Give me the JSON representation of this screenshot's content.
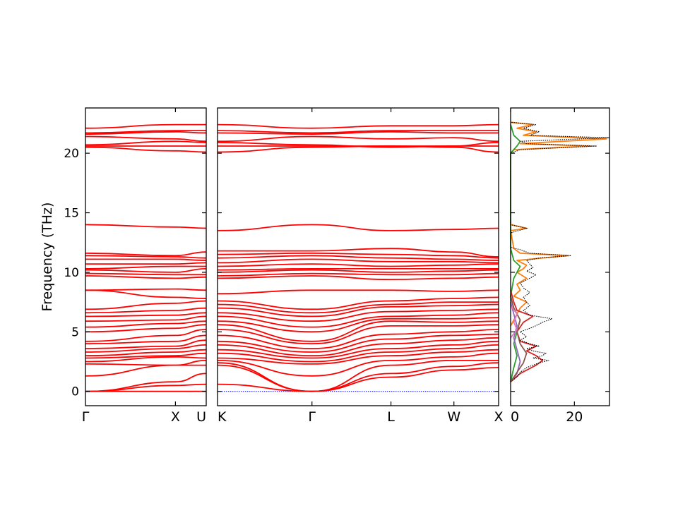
{
  "chart_data": {
    "type": "line",
    "ylabel": "Frequency (THz)",
    "ylim": [
      -1.2,
      23.8
    ],
    "yticks": [
      0,
      5,
      10,
      15,
      20
    ],
    "colors": {
      "bands": "#ff0000",
      "zero_line": "#0000ff",
      "axes": "#000000"
    },
    "band_panels": [
      {
        "segments": [
          {
            "start": "Γ",
            "end": "X"
          },
          {
            "start": "X",
            "end": "U"
          }
        ],
        "tick_labels": [
          "Γ",
          "X",
          "U"
        ],
        "tick_positions": [
          0,
          0.745,
          1.0
        ]
      },
      {
        "segments": [
          {
            "start": "K",
            "end": "Γ"
          },
          {
            "start": "Γ",
            "end": "L"
          },
          {
            "start": "L",
            "end": "W"
          },
          {
            "start": "W",
            "end": "X"
          }
        ],
        "tick_labels": [
          "K",
          "Γ",
          "L",
          "W",
          "X"
        ],
        "tick_positions": [
          0,
          0.336,
          0.617,
          0.841,
          1.0
        ]
      }
    ],
    "bands_panel1": [
      [
        0,
        0,
        0
      ],
      [
        0,
        0.5,
        0.6
      ],
      [
        0,
        0.8,
        1.5
      ],
      [
        1.3,
        2.2,
        2.2
      ],
      [
        2.3,
        2.2,
        2.6
      ],
      [
        2.5,
        2.9,
        2.8
      ],
      [
        2.8,
        3.0,
        3.2
      ],
      [
        3.0,
        3.3,
        3.5
      ],
      [
        3.3,
        3.6,
        3.9
      ],
      [
        3.6,
        3.8,
        4.3
      ],
      [
        4.0,
        4.2,
        4.7
      ],
      [
        4.2,
        4.7,
        5.2
      ],
      [
        5.0,
        5.3,
        5.6
      ],
      [
        5.4,
        5.7,
        5.9
      ],
      [
        5.9,
        6.0,
        6.3
      ],
      [
        6.3,
        6.4,
        6.6
      ],
      [
        6.6,
        6.8,
        7.0
      ],
      [
        6.9,
        7.4,
        7.6
      ],
      [
        8.5,
        7.9,
        7.8
      ],
      [
        8.5,
        8.6,
        8.5
      ],
      [
        9.7,
        9.5,
        9.6
      ],
      [
        9.9,
        9.8,
        9.8
      ],
      [
        10.2,
        10.0,
        10.3
      ],
      [
        10.3,
        10.5,
        10.5
      ],
      [
        10.7,
        10.7,
        10.8
      ],
      [
        11.1,
        11.1,
        11.0
      ],
      [
        11.4,
        11.3,
        11.2
      ],
      [
        11.6,
        11.4,
        11.7
      ],
      [
        14.0,
        13.8,
        13.7
      ],
      [
        20.5,
        20.2,
        20.1
      ],
      [
        20.6,
        20.6,
        20.6
      ],
      [
        20.7,
        21.0,
        20.9
      ],
      [
        21.4,
        21.2,
        21.0
      ],
      [
        21.6,
        21.8,
        21.7
      ],
      [
        21.7,
        21.9,
        21.9
      ],
      [
        22.1,
        22.4,
        22.4
      ]
    ],
    "bands_panel2": [
      [
        0.6,
        0,
        1.2,
        1.8,
        2.0
      ],
      [
        2.2,
        0,
        1.5,
        2.1,
        2.4
      ],
      [
        2.4,
        0,
        2.2,
        2.6,
        2.6
      ],
      [
        2.6,
        1.3,
        2.6,
        2.9,
        3.2
      ],
      [
        2.8,
        2.3,
        3.0,
        3.3,
        3.5
      ],
      [
        3.2,
        2.5,
        3.3,
        3.6,
        3.9
      ],
      [
        3.5,
        2.8,
        3.6,
        3.9,
        4.2
      ],
      [
        3.9,
        3.0,
        4.0,
        4.3,
        4.5
      ],
      [
        4.2,
        3.3,
        4.4,
        4.7,
        4.8
      ],
      [
        4.7,
        3.6,
        4.8,
        5.0,
        5.2
      ],
      [
        5.2,
        4.0,
        5.5,
        5.5,
        5.6
      ],
      [
        5.6,
        4.2,
        5.9,
        5.8,
        5.9
      ],
      [
        5.9,
        5.0,
        6.1,
        6.1,
        6.2
      ],
      [
        6.3,
        5.4,
        6.3,
        6.4,
        6.6
      ],
      [
        6.6,
        5.9,
        6.7,
        6.8,
        6.9
      ],
      [
        7.0,
        6.3,
        7.1,
        7.2,
        7.3
      ],
      [
        7.3,
        6.6,
        7.3,
        7.5,
        7.5
      ],
      [
        7.6,
        6.9,
        7.6,
        7.8,
        7.9
      ],
      [
        8.2,
        8.5,
        8.5,
        8.4,
        8.5
      ],
      [
        9.5,
        9.7,
        9.4,
        9.5,
        9.6
      ],
      [
        9.7,
        9.9,
        9.8,
        9.8,
        9.9
      ],
      [
        10.0,
        10.2,
        10.0,
        10.1,
        10.2
      ],
      [
        10.2,
        10.3,
        10.3,
        10.3,
        10.3
      ],
      [
        10.5,
        10.7,
        10.5,
        10.6,
        10.7
      ],
      [
        10.8,
        11.1,
        10.9,
        10.9,
        10.8
      ],
      [
        11.2,
        11.4,
        11.2,
        11.1,
        11.0
      ],
      [
        11.5,
        11.6,
        11.5,
        11.4,
        11.2
      ],
      [
        11.8,
        11.8,
        12.0,
        11.7,
        11.3
      ],
      [
        13.5,
        14.0,
        13.5,
        13.6,
        13.7
      ],
      [
        20.1,
        20.5,
        20.6,
        20.5,
        20.1
      ],
      [
        20.6,
        20.6,
        20.6,
        20.6,
        20.6
      ],
      [
        20.9,
        20.7,
        20.5,
        20.6,
        20.9
      ],
      [
        21.0,
        21.4,
        21.2,
        21.3,
        21.0
      ],
      [
        21.7,
        21.6,
        21.8,
        21.7,
        21.7
      ],
      [
        21.9,
        21.7,
        21.9,
        21.9,
        21.9
      ],
      [
        22.4,
        22.1,
        22.3,
        22.3,
        22.4
      ]
    ],
    "dos": {
      "xlim": [
        0,
        31
      ],
      "xticks": [
        0,
        20
      ],
      "grid": false,
      "total": [
        [
          0.8,
          0
        ],
        [
          1.2,
          2
        ],
        [
          1.6,
          3
        ],
        [
          2.0,
          5
        ],
        [
          2.4,
          9
        ],
        [
          2.6,
          12
        ],
        [
          2.8,
          7
        ],
        [
          3.0,
          10
        ],
        [
          3.2,
          11
        ],
        [
          3.4,
          7
        ],
        [
          3.6,
          5
        ],
        [
          3.8,
          9
        ],
        [
          4.0,
          6
        ],
        [
          4.3,
          3
        ],
        [
          4.6,
          5
        ],
        [
          5.0,
          3
        ],
        [
          5.4,
          7
        ],
        [
          5.8,
          10
        ],
        [
          6.1,
          13
        ],
        [
          6.4,
          6
        ],
        [
          6.8,
          4
        ],
        [
          7.2,
          6
        ],
        [
          7.5,
          5
        ],
        [
          7.9,
          4
        ],
        [
          8.3,
          6
        ],
        [
          8.7,
          4
        ],
        [
          9.1,
          3
        ],
        [
          9.5,
          6
        ],
        [
          9.8,
          8
        ],
        [
          10.1,
          5
        ],
        [
          10.4,
          7
        ],
        [
          10.7,
          6
        ],
        [
          11.0,
          5
        ],
        [
          11.2,
          9
        ],
        [
          11.4,
          19
        ],
        [
          11.6,
          6
        ],
        [
          11.9,
          3
        ],
        [
          12.1,
          0
        ],
        [
          13.3,
          0
        ],
        [
          13.7,
          5
        ],
        [
          14.0,
          0
        ],
        [
          20.0,
          0
        ],
        [
          20.3,
          3
        ],
        [
          20.6,
          27
        ],
        [
          20.8,
          5
        ],
        [
          21.0,
          3
        ],
        [
          21.3,
          31
        ],
        [
          21.5,
          6
        ],
        [
          21.8,
          9
        ],
        [
          22.1,
          4
        ],
        [
          22.4,
          8
        ],
        [
          22.6,
          0
        ]
      ],
      "partials": [
        {
          "color": "#ff7f0e",
          "points": [
            [
              5.5,
              0
            ],
            [
              6.0,
              1
            ],
            [
              6.5,
              2
            ],
            [
              7.0,
              3
            ],
            [
              7.5,
              5
            ],
            [
              8.0,
              1
            ],
            [
              8.5,
              3
            ],
            [
              9.0,
              2
            ],
            [
              9.5,
              5
            ],
            [
              10.0,
              2
            ],
            [
              10.3,
              4
            ],
            [
              10.6,
              5
            ],
            [
              11.0,
              2
            ],
            [
              11.4,
              18
            ],
            [
              11.6,
              3
            ],
            [
              12.0,
              1
            ],
            [
              13.5,
              0
            ],
            [
              13.7,
              5
            ],
            [
              14.0,
              0
            ],
            [
              20.0,
              0
            ],
            [
              20.3,
              1
            ],
            [
              20.6,
              25
            ],
            [
              20.8,
              3
            ],
            [
              21.2,
              30
            ],
            [
              21.5,
              4
            ],
            [
              21.8,
              8
            ],
            [
              22.1,
              2
            ],
            [
              22.4,
              7
            ],
            [
              22.6,
              0
            ]
          ]
        },
        {
          "color": "#2ca02c",
          "points": [
            [
              0.8,
              0
            ],
            [
              2.0,
              1
            ],
            [
              3.0,
              2
            ],
            [
              4.0,
              1
            ],
            [
              5.0,
              2
            ],
            [
              6.0,
              3
            ],
            [
              7.0,
              1
            ],
            [
              8.0,
              0
            ],
            [
              9.5,
              1
            ],
            [
              10.5,
              3
            ],
            [
              11.0,
              1
            ],
            [
              12.0,
              0
            ],
            [
              20.0,
              0
            ],
            [
              20.6,
              2
            ],
            [
              21.0,
              3
            ],
            [
              21.5,
              1
            ],
            [
              22.4,
              0
            ]
          ]
        },
        {
          "color": "#d62728",
          "points": [
            [
              0.8,
              0
            ],
            [
              1.5,
              3
            ],
            [
              2.2,
              8
            ],
            [
              2.6,
              10
            ],
            [
              3.0,
              8
            ],
            [
              3.4,
              5
            ],
            [
              3.8,
              8
            ],
            [
              4.2,
              3
            ],
            [
              5.0,
              2
            ],
            [
              5.8,
              4
            ],
            [
              6.3,
              7
            ],
            [
              6.8,
              2
            ],
            [
              7.5,
              1
            ],
            [
              8.5,
              0
            ]
          ]
        },
        {
          "color": "#9467bd",
          "points": [
            [
              0.8,
              0
            ],
            [
              1.5,
              2
            ],
            [
              2.5,
              3
            ],
            [
              3.5,
              2
            ],
            [
              4.5,
              1
            ],
            [
              5.5,
              2
            ],
            [
              6.5,
              1
            ],
            [
              7.5,
              0
            ]
          ]
        },
        {
          "color": "#8c564b",
          "points": [
            [
              0.8,
              0
            ],
            [
              1.6,
              2
            ],
            [
              2.4,
              4
            ],
            [
              3.2,
              5
            ],
            [
              4.0,
              3
            ],
            [
              5.0,
              2
            ],
            [
              6.0,
              3
            ],
            [
              7.0,
              1
            ],
            [
              8.0,
              0
            ]
          ]
        },
        {
          "color": "#e377c2",
          "points": [
            [
              4.5,
              0
            ],
            [
              5.2,
              2
            ],
            [
              5.8,
              1
            ],
            [
              6.5,
              2
            ],
            [
              7.2,
              0
            ]
          ]
        }
      ]
    }
  }
}
